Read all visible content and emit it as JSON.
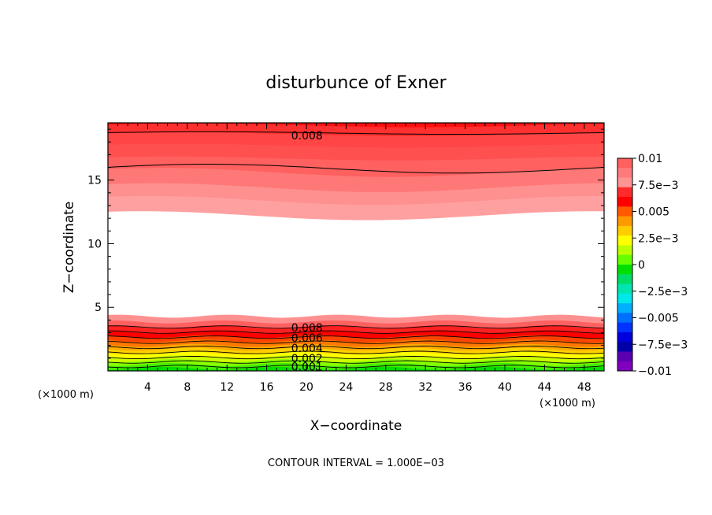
{
  "chart_data": {
    "type": "contour",
    "title": "disturbunce of Exner",
    "xlabel": "X−coordinate",
    "ylabel": "Z−coordinate",
    "x_unit": "(×1000 m)",
    "y_unit": "(×1000 m)",
    "xlim": [
      0,
      50
    ],
    "ylim": [
      0,
      19.5
    ],
    "x_ticks": [
      4,
      8,
      12,
      16,
      20,
      24,
      28,
      32,
      36,
      40,
      44,
      48
    ],
    "y_ticks": [
      5,
      10,
      15
    ],
    "footer": "CONTOUR INTERVAL = 1.000E−03",
    "contour_labels": [
      {
        "text": "0.008",
        "x": 18,
        "y": 18.5
      },
      {
        "text": "0.008",
        "x": 18,
        "y": 3.4
      },
      {
        "text": "0.006",
        "x": 18,
        "y": 2.6
      },
      {
        "text": "0.004",
        "x": 18,
        "y": 1.8
      },
      {
        "text": "0.002",
        "x": 18,
        "y": 1.0
      },
      {
        "text": "0.001",
        "x": 18,
        "y": 0.35
      }
    ],
    "colorbar": {
      "labels": [
        "0.01",
        "7.5e−3",
        "0.005",
        "2.5e−3",
        "0",
        "−2.5e−3",
        "−0.005",
        "−7.5e−3",
        "−0.01"
      ],
      "colors": [
        "#ff6060",
        "#ff7a7a",
        "#ff9494",
        "#ff2a2a",
        "#ff0000",
        "#ff5a00",
        "#ff9900",
        "#ffcc00",
        "#ffff00",
        "#bbff00",
        "#66ff00",
        "#00e000",
        "#00dd66",
        "#00e6b0",
        "#00e8e8",
        "#00b0ff",
        "#0070ff",
        "#0033ff",
        "#0000dd",
        "#0000a8",
        "#5a00b0",
        "#8000c0"
      ]
    },
    "top_band": {
      "levels": [
        0.0095,
        0.009,
        0.0085,
        0.008,
        0.0075,
        0.007,
        0.0065,
        0.006
      ],
      "colors": [
        "#ff1010",
        "#ff3030",
        "#ff4545",
        "#ff5050",
        "#ff6060",
        "#ff7878",
        "#ff9090",
        "#ffa0a0"
      ]
    },
    "bottom_band": {
      "colors": [
        "#ff9090",
        "#ff6060",
        "#ff2020",
        "#ff0000",
        "#ff4400",
        "#ff7700",
        "#ffaa00",
        "#ffd000",
        "#ffff00",
        "#ccff00",
        "#88ff00",
        "#44ee00",
        "#00dd00"
      ]
    }
  }
}
